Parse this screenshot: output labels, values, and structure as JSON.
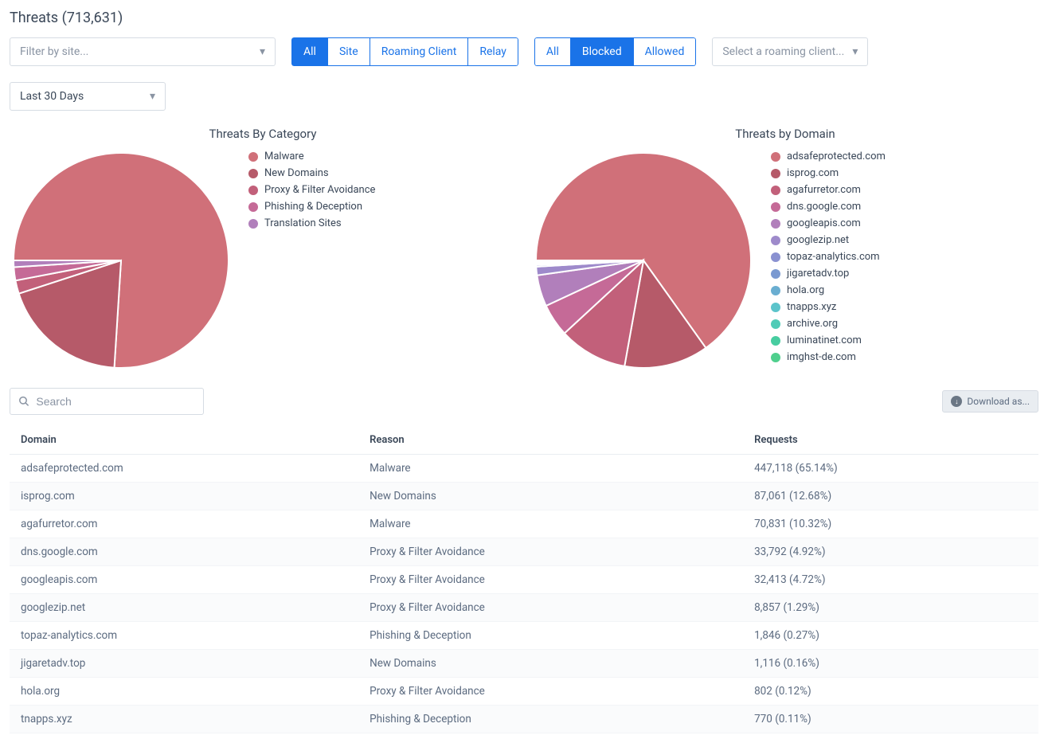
{
  "title": "Threats (713,631)",
  "controls": {
    "filter_site_placeholder": "Filter by site...",
    "group1": [
      {
        "label": "All",
        "active": true
      },
      {
        "label": "Site",
        "active": false
      },
      {
        "label": "Roaming Client",
        "active": false
      },
      {
        "label": "Relay",
        "active": false
      }
    ],
    "group2": [
      {
        "label": "All",
        "active": false
      },
      {
        "label": "Blocked",
        "active": true
      },
      {
        "label": "Allowed",
        "active": false
      }
    ],
    "roaming_placeholder": "Select a roaming client...",
    "date_range": "Last 30 Days"
  },
  "charts": {
    "category": {
      "title": "Threats By Category",
      "type": "pie",
      "background_color": "#ffffff",
      "stroke": "#ffffff",
      "stroke_width": 2,
      "slices": [
        {
          "label": "Malware",
          "value": 76,
          "color": "#d07079"
        },
        {
          "label": "New Domains",
          "value": 19,
          "color": "#b65a69"
        },
        {
          "label": "Proxy & Filter Avoidance",
          "value": 2,
          "color": "#c2607a"
        },
        {
          "label": "Phishing & Deception",
          "value": 2,
          "color": "#c56a97"
        },
        {
          "label": "Translation Sites",
          "value": 1,
          "color": "#b17fbb"
        }
      ]
    },
    "domain": {
      "title": "Threats by Domain",
      "type": "pie",
      "background_color": "#ffffff",
      "stroke": "#ffffff",
      "stroke_width": 2,
      "slices": [
        {
          "label": "adsafeprotected.com",
          "value": 65.14,
          "color": "#d07079"
        },
        {
          "label": "isprog.com",
          "value": 12.68,
          "color": "#b65a69"
        },
        {
          "label": "agafurretor.com",
          "value": 10.32,
          "color": "#c2607a"
        },
        {
          "label": "dns.google.com",
          "value": 4.92,
          "color": "#c56a97"
        },
        {
          "label": "googleapis.com",
          "value": 4.72,
          "color": "#b17fbb"
        },
        {
          "label": "googlezip.net",
          "value": 1.29,
          "color": "#9e8acb"
        },
        {
          "label": "topaz-analytics.com",
          "value": 0.27,
          "color": "#8a91d1"
        },
        {
          "label": "jigaretadv.top",
          "value": 0.16,
          "color": "#7a99d1"
        },
        {
          "label": "hola.org",
          "value": 0.12,
          "color": "#6aaed1"
        },
        {
          "label": "tnapps.xyz",
          "value": 0.11,
          "color": "#5cc4cb"
        },
        {
          "label": "archive.org",
          "value": 0.1,
          "color": "#50cbb7"
        },
        {
          "label": "luminatinet.com",
          "value": 0.09,
          "color": "#47cda0"
        },
        {
          "label": "imghst-de.com",
          "value": 0.08,
          "color": "#4fcf8d"
        }
      ]
    }
  },
  "table": {
    "search_placeholder": "Search",
    "download_label": "Download as...",
    "columns": [
      "Domain",
      "Reason",
      "Requests"
    ],
    "rows": [
      [
        "adsafeprotected.com",
        "Malware",
        "447,118 (65.14%)"
      ],
      [
        "isprog.com",
        "New Domains",
        "87,061 (12.68%)"
      ],
      [
        "agafurretor.com",
        "Malware",
        "70,831 (10.32%)"
      ],
      [
        "dns.google.com",
        "Proxy & Filter Avoidance",
        "33,792 (4.92%)"
      ],
      [
        "googleapis.com",
        "Proxy & Filter Avoidance",
        "32,413 (4.72%)"
      ],
      [
        "googlezip.net",
        "Proxy & Filter Avoidance",
        "8,857 (1.29%)"
      ],
      [
        "topaz-analytics.com",
        "Phishing & Deception",
        "1,846 (0.27%)"
      ],
      [
        "jigaretadv.top",
        "New Domains",
        "1,116 (0.16%)"
      ],
      [
        "hola.org",
        "Proxy & Filter Avoidance",
        "802 (0.12%)"
      ],
      [
        "tnapps.xyz",
        "Phishing & Deception",
        "770 (0.11%)"
      ]
    ]
  }
}
